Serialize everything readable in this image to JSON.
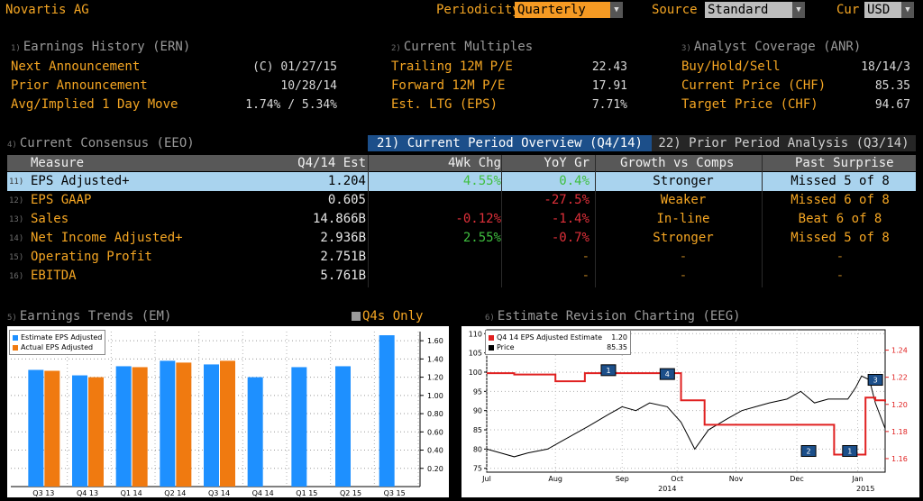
{
  "header": {
    "company": "Novartis AG",
    "periodicity_label": "Periodicity",
    "periodicity_value": "Quarterly",
    "source_label": "Source",
    "source_value": "Standard",
    "cur_label": "Cur",
    "cur_value": "USD"
  },
  "earnings_history": {
    "index": "1)",
    "title": "Earnings History (ERN)",
    "rows": [
      {
        "label": "Next Announcement",
        "value": "(C)  01/27/15"
      },
      {
        "label": "Prior Announcement",
        "value": "10/28/14"
      },
      {
        "label": "Avg/Implied 1 Day Move",
        "value": "1.74% / 5.34%"
      }
    ]
  },
  "current_multiples": {
    "index": "2)",
    "title": "Current Multiples",
    "rows": [
      {
        "label": "Trailing 12M P/E",
        "value": "22.43"
      },
      {
        "label": "Forward 12M P/E",
        "value": "17.91"
      },
      {
        "label": "Est. LTG (EPS)",
        "value": "7.71%"
      }
    ]
  },
  "analyst_coverage": {
    "index": "3)",
    "title": "Analyst Coverage (ANR)",
    "rows": [
      {
        "label": "Buy/Hold/Sell",
        "value": "18/14/3"
      },
      {
        "label": "Current Price (CHF)",
        "value": "85.35"
      },
      {
        "label": "Target Price (CHF)",
        "value": "94.67"
      }
    ]
  },
  "consensus": {
    "index": "4)",
    "title": "Current Consensus (EEO)",
    "tab_current": "21) Current Period Overview (Q4/14)",
    "tab_prior": "22) Prior Period Analysis (Q3/14)",
    "headers": [
      "Measure",
      "Q4/14 Est",
      "4Wk Chg",
      "YoY Gr",
      "Growth vs Comps",
      "Past Surprise"
    ],
    "rows": [
      {
        "idx": "11)",
        "measure": "EPS Adjusted+",
        "est": "1.204",
        "chg": "4.55%",
        "yoy": "0.4%",
        "growth": "Stronger",
        "surprise": "Missed 5 of 8"
      },
      {
        "idx": "12)",
        "measure": "EPS GAAP",
        "est": "0.605",
        "chg": "",
        "yoy": "-27.5%",
        "growth": "Weaker",
        "surprise": "Missed 6 of 8"
      },
      {
        "idx": "13)",
        "measure": "Sales",
        "est": "14.866B",
        "chg": "-0.12%",
        "yoy": "-1.4%",
        "growth": "In-line",
        "surprise": "Beat 6 of 8"
      },
      {
        "idx": "14)",
        "measure": "Net Income Adjusted+",
        "est": "2.936B",
        "chg": "2.55%",
        "yoy": "-0.7%",
        "growth": "Stronger",
        "surprise": "Missed 5 of 8"
      },
      {
        "idx": "15)",
        "measure": "Operating Profit",
        "est": "2.751B",
        "chg": "",
        "yoy": "-",
        "growth": "-",
        "surprise": "-"
      },
      {
        "idx": "16)",
        "measure": "EBITDA",
        "est": "5.761B",
        "chg": "",
        "yoy": "-",
        "growth": "-",
        "surprise": "-"
      }
    ],
    "colors": {
      "positive": "#3fbf3f",
      "negative": "#e0303a",
      "neutral": "#e6e6e6",
      "dash": "#b07a20",
      "highlight_row": "#a9d3ee",
      "tab_active": "#1c4f8a"
    }
  },
  "trends": {
    "index": "5)",
    "title": "Earnings Trends (EM)",
    "q4s_only": "Q4s Only",
    "legend_estimate": "Estimate EPS Adjusted",
    "legend_actual": "Actual EPS Adjusted",
    "y_ticks": [
      "1.60",
      "1.40",
      "1.20",
      "1.00",
      "0.80",
      "0.60",
      "0.40",
      "0.20"
    ]
  },
  "revision": {
    "index": "6)",
    "title": "Estimate Revision Charting (EEG)",
    "legend_estimate": "Q4 14 EPS Adjusted Estimate",
    "legend_estimate_value": "1.20",
    "legend_price": "Price",
    "legend_price_value": "85.35",
    "left_ticks": [
      "110",
      "105",
      "100",
      "95",
      "90",
      "85",
      "80",
      "75"
    ],
    "right_ticks": [
      "1.24",
      "1.22",
      "1.20",
      "1.18",
      "1.16"
    ],
    "x_labels": [
      "Jul",
      "Aug",
      "Sep",
      "Oct",
      "Nov",
      "Dec",
      "Jan"
    ],
    "x_years": [
      "2014",
      "2015"
    ],
    "markers": [
      "1",
      "4",
      "3",
      "2",
      "1"
    ]
  },
  "chart_data": [
    {
      "type": "bar",
      "title": "Earnings Trends (EM)",
      "categories": [
        "Q3 13",
        "Q4 13",
        "Q1 14",
        "Q2 14",
        "Q3 14",
        "Q4 14",
        "Q1 15",
        "Q2 15",
        "Q3 15"
      ],
      "series": [
        {
          "name": "Estimate EPS Adjusted",
          "color": "#1e90ff",
          "values": [
            1.28,
            1.22,
            1.32,
            1.38,
            1.34,
            1.2,
            1.31,
            1.32,
            1.66
          ]
        },
        {
          "name": "Actual EPS Adjusted",
          "color": "#f07a10",
          "values": [
            1.27,
            1.2,
            1.31,
            1.36,
            1.38,
            null,
            null,
            null,
            null
          ]
        }
      ],
      "ylim": [
        0,
        1.7
      ],
      "y_axis_side": "right"
    },
    {
      "type": "line",
      "title": "Estimate Revision Charting (EEG)",
      "x_range": [
        "2014-07-01",
        "2015-01-20"
      ],
      "series": [
        {
          "name": "Q4 14 EPS Adjusted Estimate",
          "color": "#e02020",
          "axis": "right",
          "step": true,
          "x": [
            "2014-07-01",
            "2014-07-15",
            "2014-08-05",
            "2014-08-20",
            "2014-09-10",
            "2014-10-01",
            "2014-10-08",
            "2014-10-20",
            "2014-11-15",
            "2014-12-01",
            "2014-12-25",
            "2015-01-05",
            "2015-01-10",
            "2015-01-15",
            "2015-01-20"
          ],
          "y": [
            1.223,
            1.222,
            1.217,
            1.223,
            1.223,
            1.223,
            1.203,
            1.185,
            1.185,
            1.185,
            1.163,
            1.163,
            1.205,
            1.203,
            1.202
          ]
        },
        {
          "name": "Price",
          "color": "#000000",
          "axis": "left",
          "x": [
            "2014-07-01",
            "2014-07-08",
            "2014-07-15",
            "2014-07-22",
            "2014-08-01",
            "2014-08-08",
            "2014-08-15",
            "2014-08-22",
            "2014-09-01",
            "2014-09-08",
            "2014-09-15",
            "2014-09-22",
            "2014-10-01",
            "2014-10-08",
            "2014-10-15",
            "2014-10-22",
            "2014-11-01",
            "2014-11-08",
            "2014-11-15",
            "2014-11-22",
            "2014-12-01",
            "2014-12-08",
            "2014-12-15",
            "2014-12-22",
            "2015-01-01",
            "2015-01-05",
            "2015-01-08",
            "2015-01-12",
            "2015-01-15",
            "2015-01-20"
          ],
          "y": [
            80,
            79,
            78,
            79,
            80,
            82,
            84,
            86,
            89,
            91,
            90,
            92,
            91,
            87,
            80,
            85,
            88,
            90,
            91,
            92,
            93,
            95,
            92,
            93,
            93,
            96,
            99,
            98,
            92,
            85.35
          ]
        }
      ],
      "ylim_left": [
        74,
        111
      ],
      "ylim_right": [
        1.15,
        1.255
      ],
      "markers": [
        {
          "label": "1",
          "x": "2014-09-01"
        },
        {
          "label": "4",
          "x": "2014-10-01"
        },
        {
          "label": "3",
          "x": "2015-01-15"
        },
        {
          "label": "2",
          "x": "2014-12-12"
        },
        {
          "label": "1",
          "x": "2015-01-02"
        }
      ]
    }
  ]
}
